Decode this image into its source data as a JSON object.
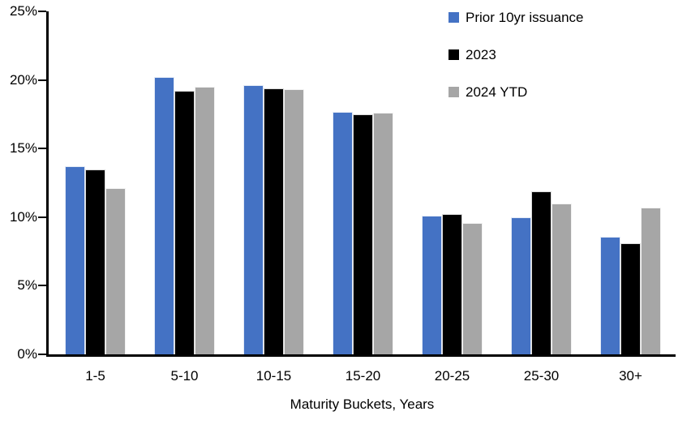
{
  "chart_data": {
    "type": "bar",
    "xlabel": "Maturity Buckets, Years",
    "ylabel": "",
    "ylim": [
      0,
      25
    ],
    "ytick_step": 5,
    "ytick_suffix": "%",
    "grid": false,
    "legend_position": "top-right",
    "categories": [
      "1-5",
      "5-10",
      "10-15",
      "15-20",
      "20-25",
      "25-30",
      "30+"
    ],
    "series": [
      {
        "name": "Prior 10yr issuance",
        "color": "#4472C4",
        "values": [
          13.7,
          20.2,
          19.6,
          17.7,
          10.1,
          10.0,
          8.6
        ]
      },
      {
        "name": "2023",
        "color": "#000000",
        "values": [
          13.5,
          19.2,
          19.4,
          17.5,
          10.2,
          11.9,
          8.1
        ]
      },
      {
        "name": "2024 YTD",
        "color": "#A6A6A6",
        "values": [
          12.1,
          19.5,
          19.3,
          17.6,
          9.6,
          11.0,
          10.7
        ]
      }
    ]
  }
}
